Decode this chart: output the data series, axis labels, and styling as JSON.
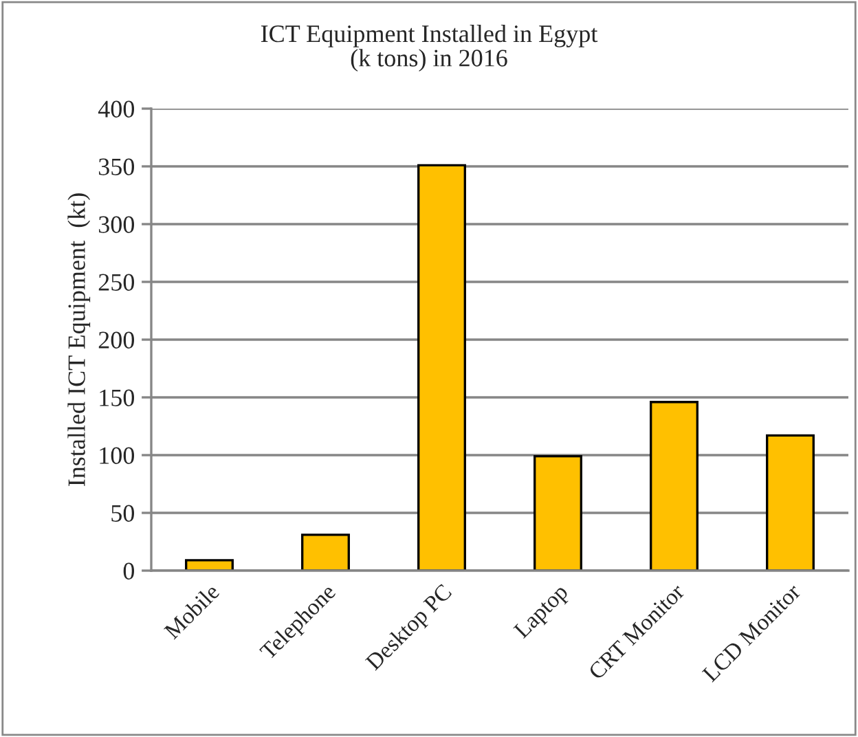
{
  "chart_data": {
    "type": "bar",
    "title": "ICT Equipment Installed in Egypt\n(k tons) in 2016",
    "ylabel": "Installed ICT Equipment  (kt)",
    "categories": [
      "Mobile",
      "Telephone",
      "Desktop PC",
      "Laptop",
      "CRT Monitor",
      "LCD Monitor"
    ],
    "values": [
      9,
      31,
      351,
      99,
      146,
      117
    ],
    "color": "#ffc000",
    "ylim": [
      0,
      400
    ],
    "yticks": [
      0,
      50,
      100,
      150,
      200,
      250,
      300,
      350,
      400
    ],
    "grid": "y",
    "legend": false
  }
}
